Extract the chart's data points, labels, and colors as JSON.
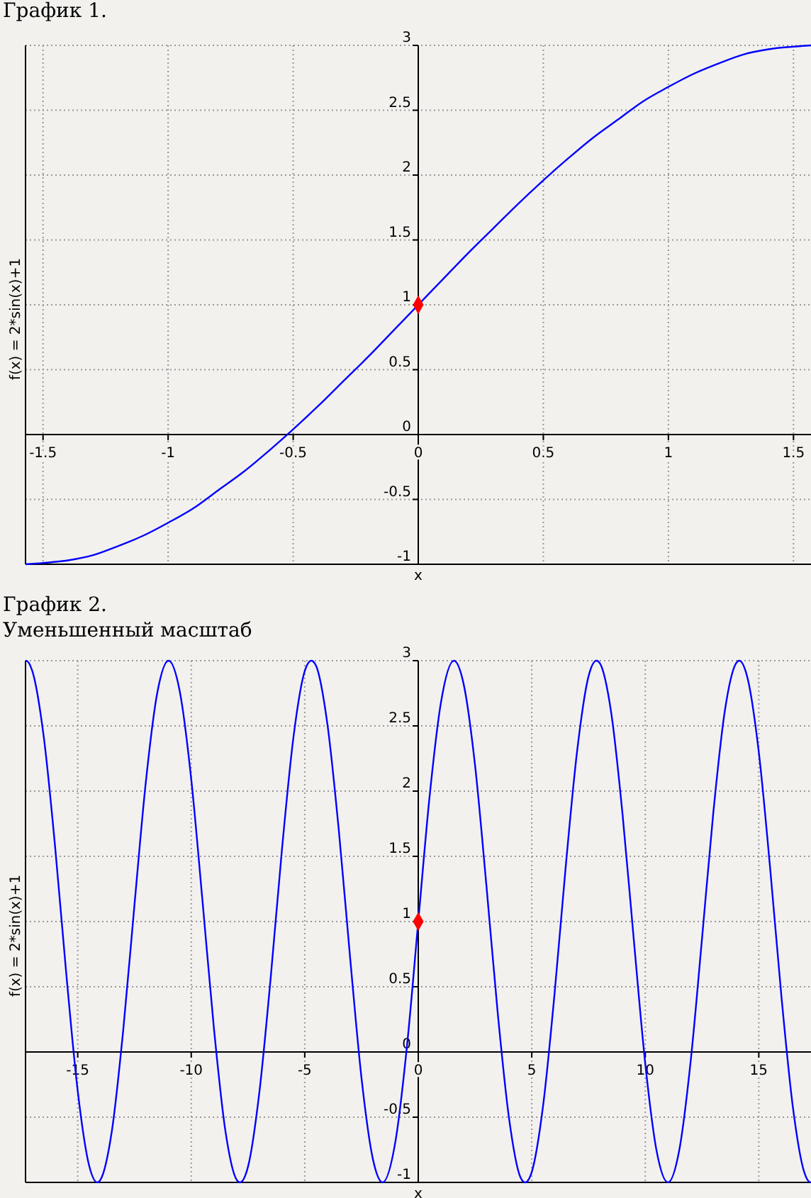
{
  "chart_data": [
    {
      "type": "line",
      "title": "График 1.",
      "xlabel": "x",
      "ylabel": "f(x) = 2*sin(x)+1",
      "xlim": [
        -1.57,
        1.57
      ],
      "ylim": [
        -1,
        3
      ],
      "xticks": [
        -1.5,
        -1,
        -0.5,
        0,
        0.5,
        1,
        1.5
      ],
      "yticks": [
        -1,
        -0.5,
        0,
        0.5,
        1,
        1.5,
        2,
        2.5,
        3
      ],
      "grid": true,
      "series": [
        {
          "color": "#0000ff",
          "x": [
            -1.57,
            -1.5,
            -1.4,
            -1.3,
            -1.2,
            -1.1,
            -1,
            -0.9,
            -0.8,
            -0.7,
            -0.6,
            -0.5,
            -0.4,
            -0.3,
            -0.2,
            -0.1,
            0,
            0.1,
            0.2,
            0.3,
            0.4,
            0.5,
            0.6,
            0.7,
            0.8,
            0.9,
            1,
            1.1,
            1.2,
            1.3,
            1.4,
            1.5,
            1.57
          ],
          "values": [
            -1,
            -0.99,
            -0.97,
            -0.93,
            -0.86,
            -0.78,
            -0.68,
            -0.57,
            -0.43,
            -0.29,
            -0.13,
            0.04,
            0.22,
            0.41,
            0.6,
            0.8,
            1,
            1.2,
            1.4,
            1.59,
            1.78,
            1.96,
            2.13,
            2.29,
            2.43,
            2.57,
            2.68,
            2.78,
            2.86,
            2.93,
            2.97,
            2.99,
            3
          ]
        },
        {
          "type": "scatter",
          "color": "#ff0000",
          "marker": "diamond",
          "x": [
            0
          ],
          "values": [
            1
          ]
        }
      ]
    },
    {
      "type": "line",
      "title": "График 2.",
      "subtitle": "Уменьшенный масштаб",
      "xlabel": "x",
      "ylabel": "f(x) = 2*sin(x)+1",
      "xlim": [
        -17.3,
        17.3
      ],
      "ylim": [
        -1,
        3
      ],
      "xticks": [
        -15,
        -10,
        -5,
        0,
        5,
        10,
        15
      ],
      "yticks": [
        -1,
        -0.5,
        0,
        0.5,
        1,
        1.5,
        2,
        2.5,
        3
      ],
      "grid": true,
      "series": [
        {
          "color": "#0000ff",
          "x": [
            -17.3,
            -17.28,
            -17,
            -16.5,
            -16,
            -15.5,
            -15,
            -14.5,
            -14.14,
            -14,
            -13.5,
            -13,
            -12.5,
            -12,
            -11.5,
            -11,
            -10.5,
            -10,
            -9.5,
            -9,
            -8.5,
            -8,
            -7.85,
            -7.5,
            -7,
            -6.5,
            -6,
            -5.5,
            -5,
            -4.71,
            -4.5,
            -4,
            -3.5,
            -3,
            -2.5,
            -2,
            -1.57,
            -1,
            -0.5,
            0,
            0.5,
            1,
            1.57,
            2,
            2.5,
            3,
            3.5,
            4,
            4.5,
            4.71,
            5,
            5.5,
            6,
            6.5,
            7,
            7.5,
            7.85,
            8,
            8.5,
            9,
            9.5,
            10,
            10.5,
            11,
            11.5,
            12,
            12.5,
            13,
            13.5,
            14,
            14.14,
            14.5,
            15,
            15.5,
            16,
            16.5,
            17,
            17.28,
            17.3
          ],
          "values": [
            3,
            3,
            2.92,
            2.42,
            1.58,
            0.59,
            -0.3,
            -0.87,
            -1,
            -0.98,
            -0.61,
            0.16,
            1.13,
            2.07,
            2.75,
            3,
            2.76,
            2.09,
            1.15,
            0.18,
            -0.6,
            -0.98,
            -1,
            -0.88,
            -0.31,
            0.57,
            1.56,
            2.41,
            2.92,
            3,
            2.96,
            2.51,
            1.7,
            0.72,
            -0.2,
            -0.82,
            -1,
            -0.68,
            0.04,
            1,
            1.96,
            2.68,
            3,
            2.82,
            2.2,
            1.28,
            0.3,
            -0.51,
            -0.96,
            -1,
            -0.92,
            -0.41,
            0.44,
            1.43,
            2.31,
            2.88,
            3,
            2.98,
            2.6,
            1.82,
            0.85,
            -0.09,
            -0.76,
            -1,
            -0.75,
            -0.07,
            0.87,
            1.84,
            2.61,
            2.98,
            3,
            2.87,
            2.3,
            1.41,
            0.42,
            -0.42,
            -0.92,
            -1,
            -1
          ]
        },
        {
          "type": "scatter",
          "color": "#ff0000",
          "marker": "diamond",
          "x": [
            0
          ],
          "values": [
            1
          ]
        }
      ]
    }
  ]
}
